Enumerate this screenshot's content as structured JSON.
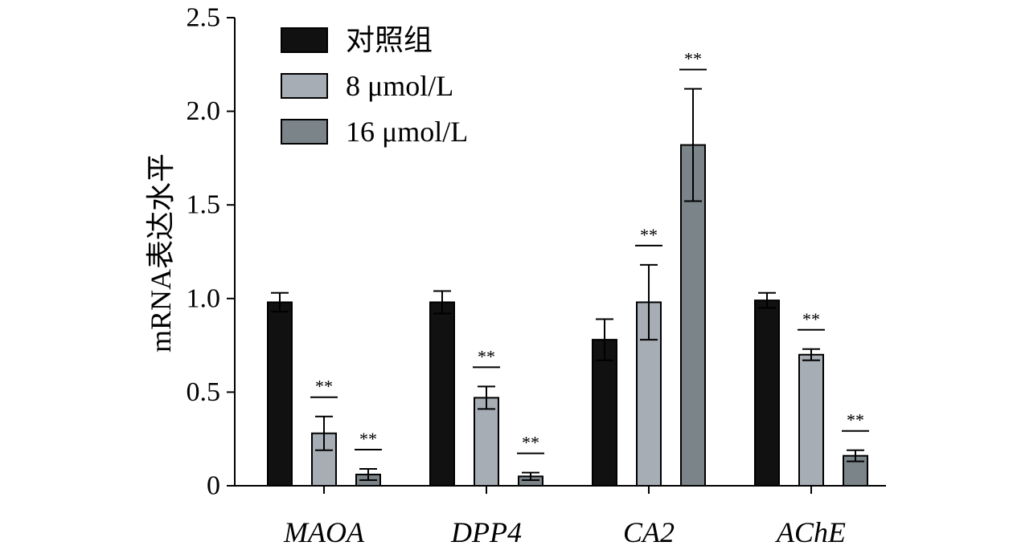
{
  "chart_data": {
    "type": "bar",
    "ylabel": "mRNA表达水平",
    "ylim": [
      0,
      2.5
    ],
    "yticks": [
      0,
      0.5,
      1.0,
      1.5,
      2.0,
      2.5
    ],
    "ytick_labels": [
      "0",
      "0.5",
      "1.0",
      "1.5",
      "2.0",
      "2.5"
    ],
    "categories": [
      "MAOA",
      "DPP4",
      "CA2",
      "AChE"
    ],
    "legend_position": "top-left",
    "grid": false,
    "series": [
      {
        "name": "对照组",
        "color": "#111111",
        "values": [
          0.98,
          0.98,
          0.78,
          0.99
        ],
        "errors": [
          0.05,
          0.06,
          0.11,
          0.04
        ],
        "significance": [
          "",
          "",
          "",
          ""
        ]
      },
      {
        "name": "8 μmol/L",
        "color": "#a6adb4",
        "values": [
          0.28,
          0.47,
          0.98,
          0.7
        ],
        "errors": [
          0.09,
          0.06,
          0.2,
          0.03
        ],
        "significance": [
          "**",
          "**",
          "**",
          "**"
        ]
      },
      {
        "name": "16 μmol/L",
        "color": "#7b8488",
        "values": [
          0.06,
          0.05,
          1.82,
          0.16
        ],
        "errors": [
          0.03,
          0.02,
          0.3,
          0.03
        ],
        "significance": [
          "**",
          "**",
          "**",
          "**"
        ]
      }
    ]
  }
}
